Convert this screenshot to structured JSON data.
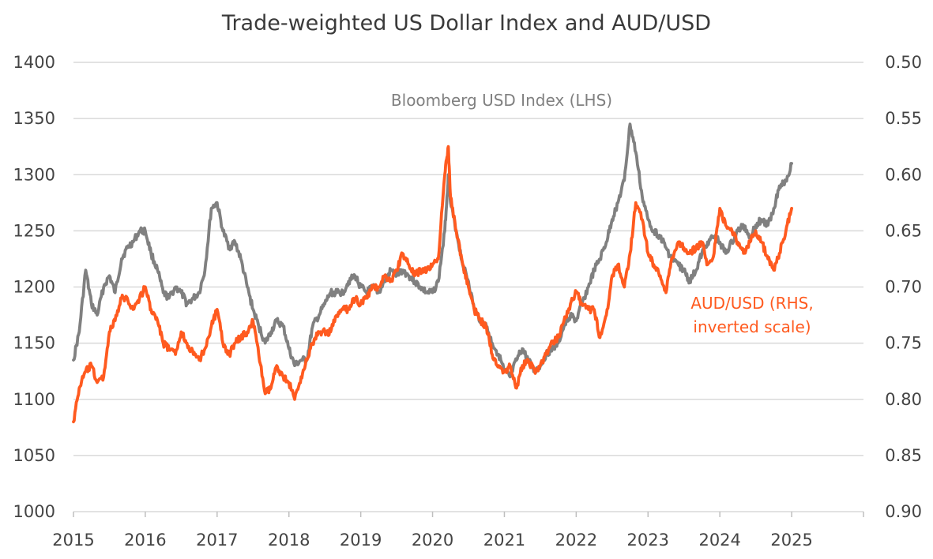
{
  "chart_data": {
    "type": "line",
    "title": "Trade-weighted US Dollar Index and AUD/USD",
    "x_ticks": [
      "2015",
      "2016",
      "2017",
      "2018",
      "2019",
      "2020",
      "2021",
      "2022",
      "2023",
      "2024",
      "2025"
    ],
    "xlim": [
      2015,
      2026
    ],
    "y_left": {
      "ticks": [
        "1000",
        "1050",
        "1100",
        "1150",
        "1200",
        "1250",
        "1300",
        "1350",
        "1400"
      ],
      "ylim": [
        1000,
        1400
      ]
    },
    "y_right": {
      "ticks": [
        "0.90",
        "0.85",
        "0.80",
        "0.75",
        "0.70",
        "0.65",
        "0.60",
        "0.55",
        "0.50"
      ],
      "ylim": [
        0.9,
        0.5
      ],
      "inverted": true
    },
    "grid": true,
    "series": [
      {
        "name": "Bloomberg USD Index (LHS)",
        "axis": "left",
        "color": "#808080",
        "label_lines": [
          "Bloomberg USD Index (LHS)"
        ],
        "x": [
          2015.0,
          2015.08,
          2015.17,
          2015.25,
          2015.33,
          2015.42,
          2015.5,
          2015.58,
          2015.67,
          2015.75,
          2015.83,
          2015.92,
          2016.0,
          2016.08,
          2016.17,
          2016.25,
          2016.33,
          2016.42,
          2016.5,
          2016.58,
          2016.67,
          2016.75,
          2016.83,
          2016.92,
          2017.0,
          2017.08,
          2017.17,
          2017.25,
          2017.33,
          2017.42,
          2017.5,
          2017.58,
          2017.67,
          2017.75,
          2017.83,
          2017.92,
          2018.0,
          2018.08,
          2018.17,
          2018.25,
          2018.33,
          2018.42,
          2018.5,
          2018.58,
          2018.67,
          2018.75,
          2018.83,
          2018.92,
          2019.0,
          2019.08,
          2019.17,
          2019.25,
          2019.33,
          2019.42,
          2019.5,
          2019.58,
          2019.67,
          2019.75,
          2019.83,
          2019.92,
          2020.0,
          2020.08,
          2020.17,
          2020.22,
          2020.25,
          2020.33,
          2020.42,
          2020.5,
          2020.58,
          2020.67,
          2020.75,
          2020.83,
          2020.92,
          2021.0,
          2021.08,
          2021.17,
          2021.25,
          2021.33,
          2021.42,
          2021.5,
          2021.58,
          2021.67,
          2021.75,
          2021.83,
          2021.92,
          2022.0,
          2022.08,
          2022.17,
          2022.25,
          2022.33,
          2022.42,
          2022.5,
          2022.58,
          2022.67,
          2022.75,
          2022.83,
          2022.92,
          2023.0,
          2023.08,
          2023.17,
          2023.25,
          2023.33,
          2023.42,
          2023.5,
          2023.58,
          2023.67,
          2023.75,
          2023.83,
          2023.92,
          2024.0,
          2024.08,
          2024.17,
          2024.25,
          2024.33,
          2024.42,
          2024.5,
          2024.58,
          2024.67,
          2024.75,
          2024.83,
          2024.92,
          2025.0
        ],
        "values": [
          1135,
          1160,
          1215,
          1185,
          1175,
          1200,
          1210,
          1195,
          1225,
          1235,
          1240,
          1250,
          1250,
          1230,
          1215,
          1195,
          1190,
          1200,
          1195,
          1185,
          1190,
          1195,
          1215,
          1270,
          1275,
          1250,
          1235,
          1240,
          1225,
          1200,
          1180,
          1165,
          1150,
          1160,
          1170,
          1165,
          1145,
          1130,
          1135,
          1135,
          1165,
          1175,
          1185,
          1195,
          1195,
          1195,
          1205,
          1210,
          1200,
          1195,
          1200,
          1195,
          1205,
          1215,
          1210,
          1215,
          1210,
          1205,
          1200,
          1195,
          1195,
          1205,
          1250,
          1300,
          1275,
          1250,
          1220,
          1205,
          1180,
          1170,
          1165,
          1150,
          1140,
          1125,
          1120,
          1135,
          1145,
          1135,
          1125,
          1130,
          1140,
          1145,
          1150,
          1165,
          1175,
          1170,
          1185,
          1200,
          1215,
          1225,
          1240,
          1260,
          1275,
          1295,
          1345,
          1320,
          1280,
          1260,
          1250,
          1245,
          1235,
          1225,
          1220,
          1215,
          1205,
          1215,
          1230,
          1240,
          1245,
          1240,
          1230,
          1240,
          1250,
          1255,
          1245,
          1255,
          1260,
          1255,
          1270,
          1290,
          1295,
          1310
        ]
      },
      {
        "name": "AUD/USD (RHS, inverted scale)",
        "axis": "right",
        "color": "#ff5a1f",
        "label_lines": [
          "AUD/USD (RHS,",
          "inverted scale)"
        ],
        "x": [
          2015.0,
          2015.08,
          2015.17,
          2015.25,
          2015.33,
          2015.42,
          2015.5,
          2015.58,
          2015.67,
          2015.75,
          2015.83,
          2015.92,
          2016.0,
          2016.08,
          2016.17,
          2016.25,
          2016.33,
          2016.42,
          2016.5,
          2016.58,
          2016.67,
          2016.75,
          2016.83,
          2016.92,
          2017.0,
          2017.08,
          2017.17,
          2017.25,
          2017.33,
          2017.42,
          2017.5,
          2017.58,
          2017.67,
          2017.75,
          2017.83,
          2017.92,
          2018.0,
          2018.08,
          2018.17,
          2018.25,
          2018.33,
          2018.42,
          2018.5,
          2018.58,
          2018.67,
          2018.75,
          2018.83,
          2018.92,
          2019.0,
          2019.08,
          2019.17,
          2019.25,
          2019.33,
          2019.42,
          2019.5,
          2019.58,
          2019.67,
          2019.75,
          2019.83,
          2019.92,
          2020.0,
          2020.08,
          2020.17,
          2020.22,
          2020.25,
          2020.33,
          2020.42,
          2020.5,
          2020.58,
          2020.67,
          2020.75,
          2020.83,
          2020.92,
          2021.0,
          2021.08,
          2021.17,
          2021.25,
          2021.33,
          2021.42,
          2021.5,
          2021.58,
          2021.67,
          2021.75,
          2021.83,
          2021.92,
          2022.0,
          2022.08,
          2022.17,
          2022.25,
          2022.33,
          2022.42,
          2022.5,
          2022.58,
          2022.67,
          2022.75,
          2022.83,
          2022.92,
          2023.0,
          2023.08,
          2023.17,
          2023.25,
          2023.33,
          2023.42,
          2023.5,
          2023.58,
          2023.67,
          2023.75,
          2023.83,
          2023.92,
          2024.0,
          2024.08,
          2024.17,
          2024.25,
          2024.33,
          2024.42,
          2024.5,
          2024.58,
          2024.67,
          2024.75,
          2024.83,
          2024.92,
          2025.0
        ],
        "values": [
          0.82,
          0.79,
          0.775,
          0.77,
          0.785,
          0.78,
          0.74,
          0.73,
          0.71,
          0.71,
          0.72,
          0.71,
          0.7,
          0.72,
          0.73,
          0.75,
          0.755,
          0.76,
          0.74,
          0.75,
          0.76,
          0.765,
          0.755,
          0.735,
          0.72,
          0.75,
          0.76,
          0.75,
          0.745,
          0.74,
          0.73,
          0.76,
          0.795,
          0.79,
          0.77,
          0.78,
          0.785,
          0.8,
          0.78,
          0.765,
          0.75,
          0.74,
          0.74,
          0.74,
          0.725,
          0.72,
          0.72,
          0.71,
          0.715,
          0.71,
          0.7,
          0.7,
          0.69,
          0.695,
          0.685,
          0.67,
          0.68,
          0.69,
          0.685,
          0.685,
          0.68,
          0.675,
          0.6,
          0.575,
          0.62,
          0.65,
          0.68,
          0.7,
          0.72,
          0.73,
          0.735,
          0.76,
          0.77,
          0.775,
          0.77,
          0.79,
          0.77,
          0.765,
          0.775,
          0.77,
          0.76,
          0.75,
          0.745,
          0.73,
          0.715,
          0.705,
          0.715,
          0.72,
          0.72,
          0.745,
          0.725,
          0.69,
          0.68,
          0.7,
          0.67,
          0.625,
          0.64,
          0.67,
          0.68,
          0.69,
          0.705,
          0.675,
          0.66,
          0.665,
          0.67,
          0.665,
          0.66,
          0.68,
          0.67,
          0.63,
          0.645,
          0.65,
          0.66,
          0.67,
          0.66,
          0.65,
          0.66,
          0.675,
          0.685,
          0.67,
          0.65,
          0.63
        ]
      }
    ]
  }
}
